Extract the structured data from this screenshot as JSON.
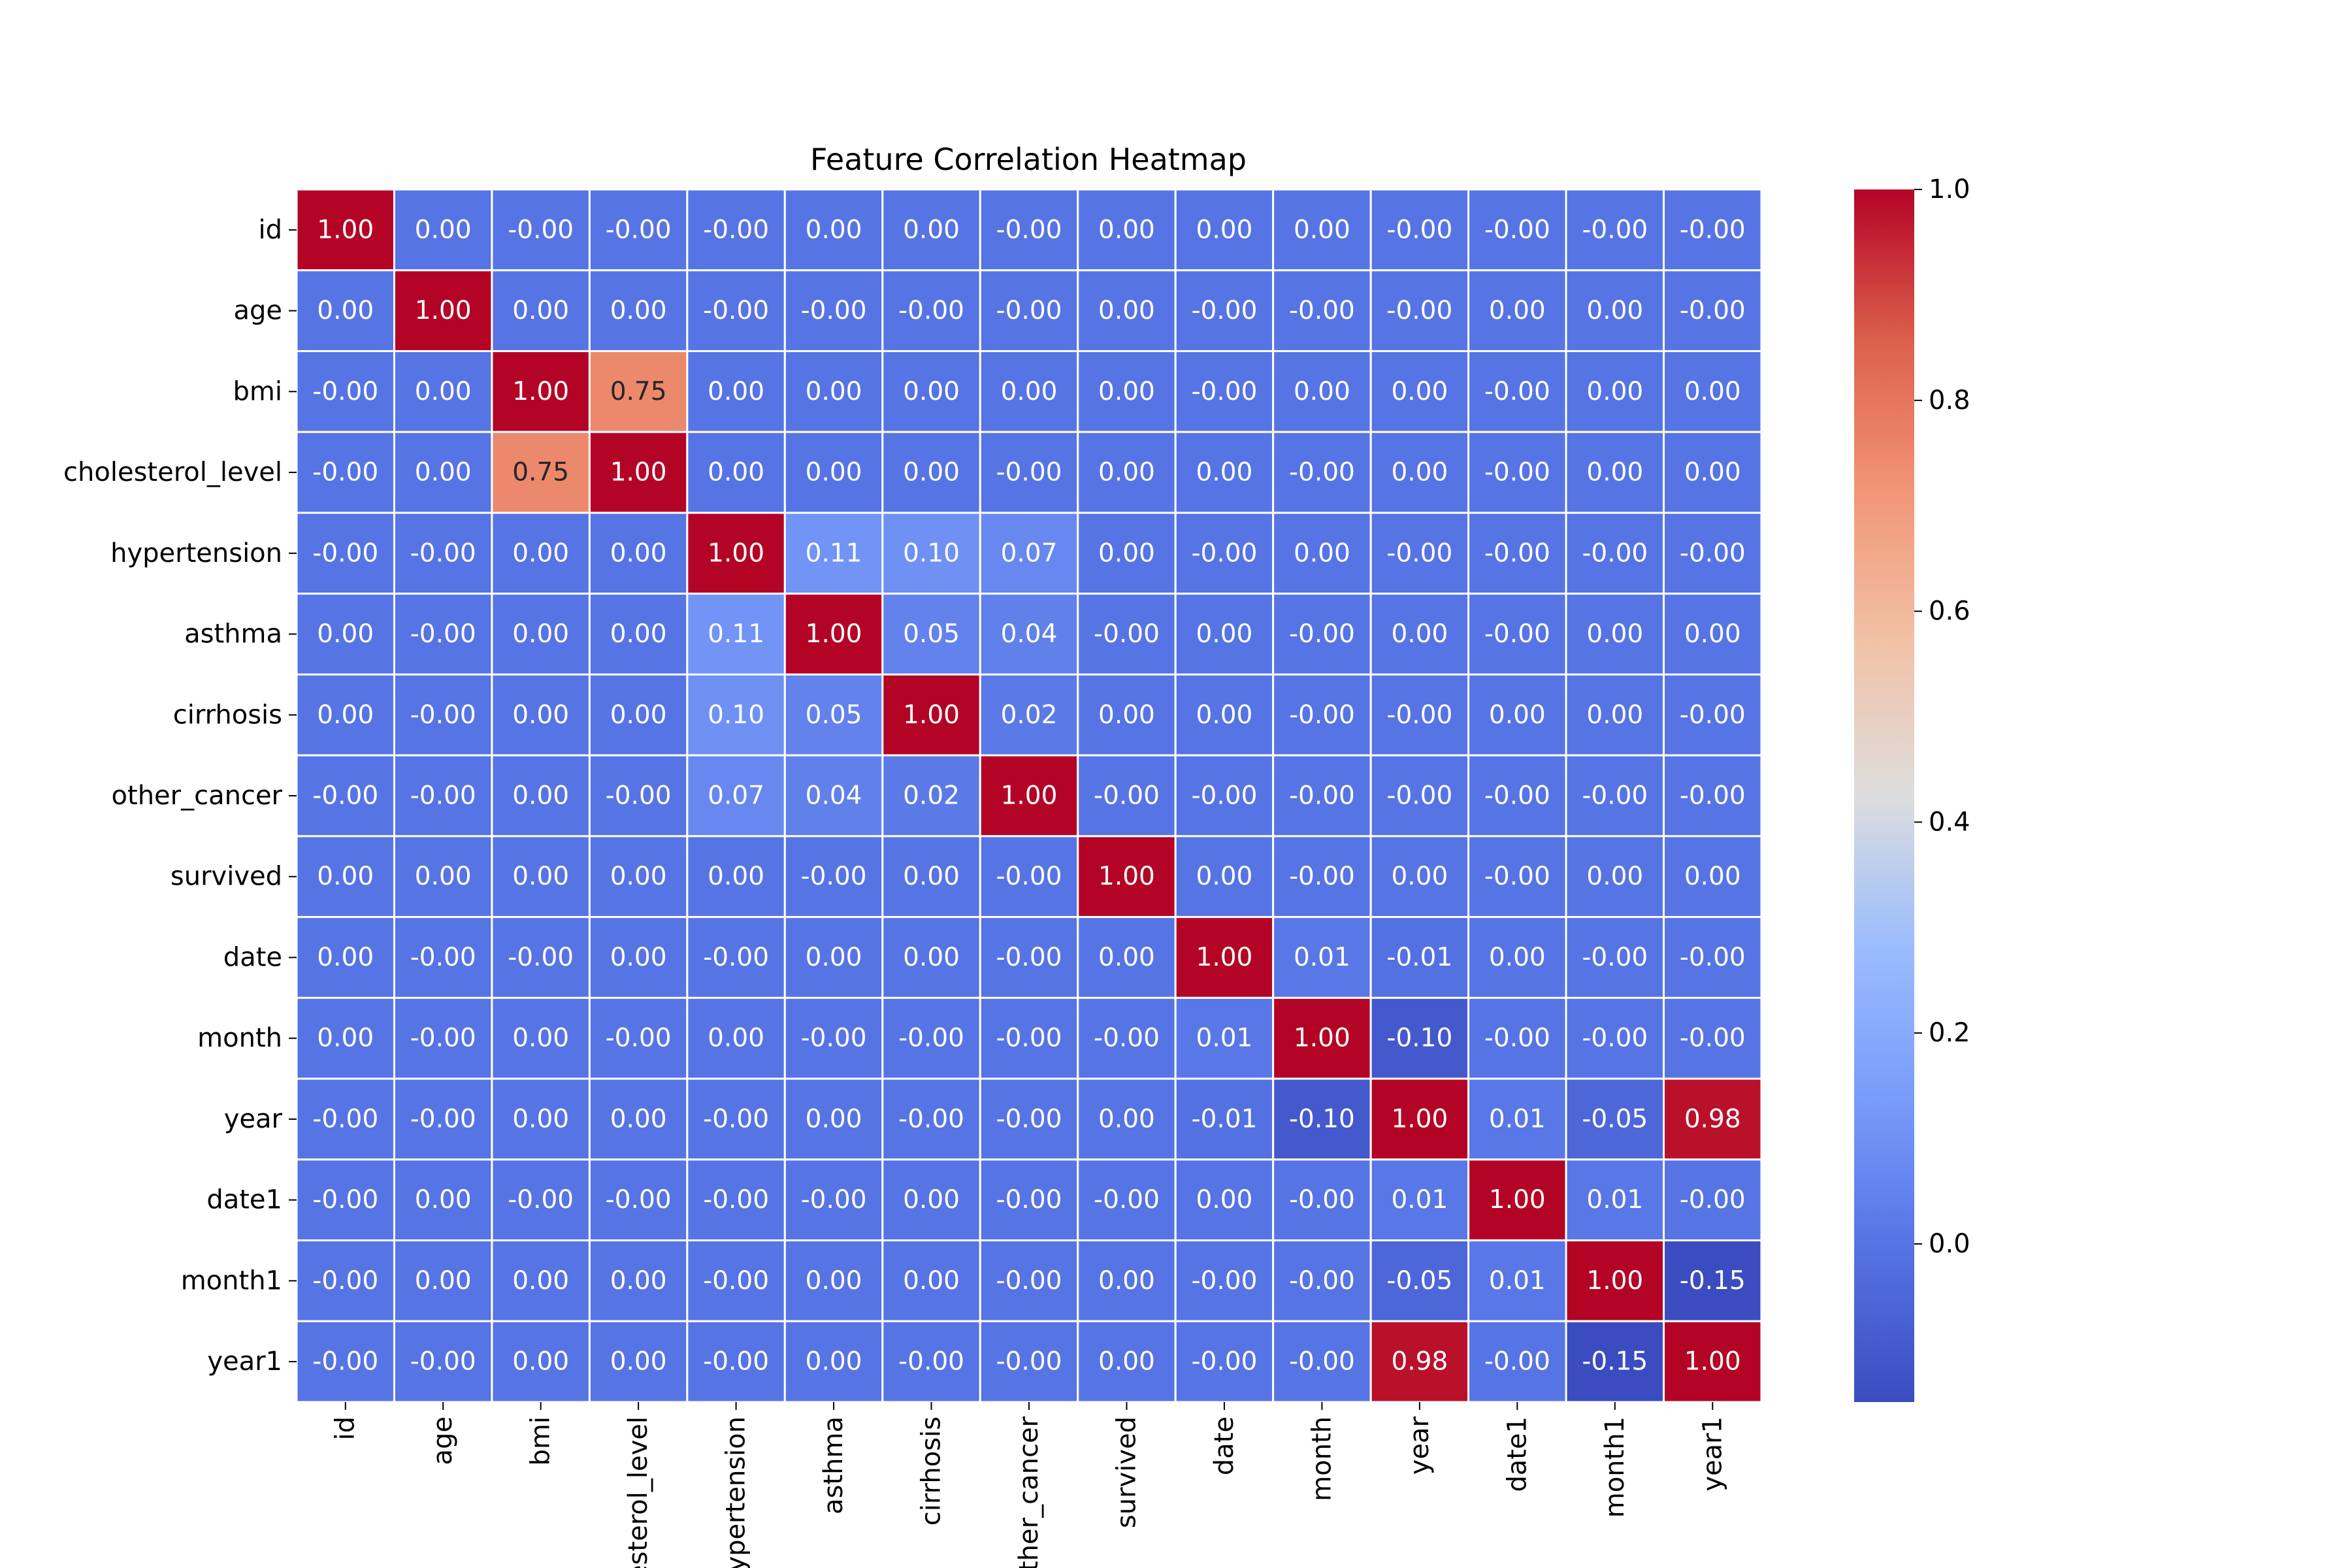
{
  "chart_data": {
    "type": "heatmap",
    "title": "Feature Correlation Heatmap",
    "xlabel": "",
    "ylabel": "",
    "colormap": "coolwarm",
    "value_range": [
      -0.15,
      1.0
    ],
    "rows": [
      "id",
      "age",
      "bmi",
      "cholesterol_level",
      "hypertension",
      "asthma",
      "cirrhosis",
      "other_cancer",
      "survived",
      "date",
      "month",
      "year",
      "date1",
      "month1",
      "year1"
    ],
    "columns": [
      "id",
      "age",
      "bmi",
      "cholesterol_level",
      "hypertension",
      "asthma",
      "cirrhosis",
      "other_cancer",
      "survived",
      "date",
      "month",
      "year",
      "date1",
      "month1",
      "year1"
    ],
    "values": [
      [
        1.0,
        0.0,
        -0.0,
        -0.0,
        -0.0,
        0.0,
        0.0,
        -0.0,
        0.0,
        0.0,
        0.0,
        -0.0,
        -0.0,
        -0.0,
        -0.0
      ],
      [
        0.0,
        1.0,
        0.0,
        0.0,
        -0.0,
        -0.0,
        -0.0,
        -0.0,
        0.0,
        -0.0,
        -0.0,
        -0.0,
        0.0,
        0.0,
        -0.0
      ],
      [
        -0.0,
        0.0,
        1.0,
        0.75,
        0.0,
        0.0,
        0.0,
        0.0,
        0.0,
        -0.0,
        0.0,
        0.0,
        -0.0,
        0.0,
        0.0
      ],
      [
        -0.0,
        0.0,
        0.75,
        1.0,
        0.0,
        0.0,
        0.0,
        -0.0,
        0.0,
        0.0,
        -0.0,
        0.0,
        -0.0,
        0.0,
        0.0
      ],
      [
        -0.0,
        -0.0,
        0.0,
        0.0,
        1.0,
        0.11,
        0.1,
        0.07,
        0.0,
        -0.0,
        0.0,
        -0.0,
        -0.0,
        -0.0,
        -0.0
      ],
      [
        0.0,
        -0.0,
        0.0,
        0.0,
        0.11,
        1.0,
        0.05,
        0.04,
        -0.0,
        0.0,
        -0.0,
        0.0,
        -0.0,
        0.0,
        0.0
      ],
      [
        0.0,
        -0.0,
        0.0,
        0.0,
        0.1,
        0.05,
        1.0,
        0.02,
        0.0,
        0.0,
        -0.0,
        -0.0,
        0.0,
        0.0,
        -0.0
      ],
      [
        -0.0,
        -0.0,
        0.0,
        -0.0,
        0.07,
        0.04,
        0.02,
        1.0,
        -0.0,
        -0.0,
        -0.0,
        -0.0,
        -0.0,
        -0.0,
        -0.0
      ],
      [
        0.0,
        0.0,
        0.0,
        0.0,
        0.0,
        -0.0,
        0.0,
        -0.0,
        1.0,
        0.0,
        -0.0,
        0.0,
        -0.0,
        0.0,
        0.0
      ],
      [
        0.0,
        -0.0,
        -0.0,
        0.0,
        -0.0,
        0.0,
        0.0,
        -0.0,
        0.0,
        1.0,
        0.01,
        -0.01,
        0.0,
        -0.0,
        -0.0
      ],
      [
        0.0,
        -0.0,
        0.0,
        -0.0,
        0.0,
        -0.0,
        -0.0,
        -0.0,
        -0.0,
        0.01,
        1.0,
        -0.1,
        -0.0,
        -0.0,
        -0.0
      ],
      [
        -0.0,
        -0.0,
        0.0,
        0.0,
        -0.0,
        0.0,
        -0.0,
        -0.0,
        0.0,
        -0.01,
        -0.1,
        1.0,
        0.01,
        -0.05,
        0.98
      ],
      [
        -0.0,
        0.0,
        -0.0,
        -0.0,
        -0.0,
        -0.0,
        0.0,
        -0.0,
        -0.0,
        0.0,
        -0.0,
        0.01,
        1.0,
        0.01,
        -0.0
      ],
      [
        -0.0,
        0.0,
        0.0,
        0.0,
        -0.0,
        0.0,
        0.0,
        -0.0,
        0.0,
        -0.0,
        -0.0,
        -0.05,
        0.01,
        1.0,
        -0.15
      ],
      [
        -0.0,
        -0.0,
        0.0,
        0.0,
        -0.0,
        0.0,
        -0.0,
        -0.0,
        0.0,
        -0.0,
        -0.0,
        0.98,
        -0.0,
        -0.15,
        1.0
      ]
    ],
    "cell_labels": [
      [
        "1.00",
        "0.00",
        "-0.00",
        "-0.00",
        "-0.00",
        "0.00",
        "0.00",
        "-0.00",
        "0.00",
        "0.00",
        "0.00",
        "-0.00",
        "-0.00",
        "-0.00",
        "-0.00"
      ],
      [
        "0.00",
        "1.00",
        "0.00",
        "0.00",
        "-0.00",
        "-0.00",
        "-0.00",
        "-0.00",
        "0.00",
        "-0.00",
        "-0.00",
        "-0.00",
        "0.00",
        "0.00",
        "-0.00"
      ],
      [
        "-0.00",
        "0.00",
        "1.00",
        "0.75",
        "0.00",
        "0.00",
        "0.00",
        "0.00",
        "0.00",
        "-0.00",
        "0.00",
        "0.00",
        "-0.00",
        "0.00",
        "0.00"
      ],
      [
        "-0.00",
        "0.00",
        "0.75",
        "1.00",
        "0.00",
        "0.00",
        "0.00",
        "-0.00",
        "0.00",
        "0.00",
        "-0.00",
        "0.00",
        "-0.00",
        "0.00",
        "0.00"
      ],
      [
        "-0.00",
        "-0.00",
        "0.00",
        "0.00",
        "1.00",
        "0.11",
        "0.10",
        "0.07",
        "0.00",
        "-0.00",
        "0.00",
        "-0.00",
        "-0.00",
        "-0.00",
        "-0.00"
      ],
      [
        "0.00",
        "-0.00",
        "0.00",
        "0.00",
        "0.11",
        "1.00",
        "0.05",
        "0.04",
        "-0.00",
        "0.00",
        "-0.00",
        "0.00",
        "-0.00",
        "0.00",
        "0.00"
      ],
      [
        "0.00",
        "-0.00",
        "0.00",
        "0.00",
        "0.10",
        "0.05",
        "1.00",
        "0.02",
        "0.00",
        "0.00",
        "-0.00",
        "-0.00",
        "0.00",
        "0.00",
        "-0.00"
      ],
      [
        "-0.00",
        "-0.00",
        "0.00",
        "-0.00",
        "0.07",
        "0.04",
        "0.02",
        "1.00",
        "-0.00",
        "-0.00",
        "-0.00",
        "-0.00",
        "-0.00",
        "-0.00",
        "-0.00"
      ],
      [
        "0.00",
        "0.00",
        "0.00",
        "0.00",
        "0.00",
        "-0.00",
        "0.00",
        "-0.00",
        "1.00",
        "0.00",
        "-0.00",
        "0.00",
        "-0.00",
        "0.00",
        "0.00"
      ],
      [
        "0.00",
        "-0.00",
        "-0.00",
        "0.00",
        "-0.00",
        "0.00",
        "0.00",
        "-0.00",
        "0.00",
        "1.00",
        "0.01",
        "-0.01",
        "0.00",
        "-0.00",
        "-0.00"
      ],
      [
        "0.00",
        "-0.00",
        "0.00",
        "-0.00",
        "0.00",
        "-0.00",
        "-0.00",
        "-0.00",
        "-0.00",
        "0.01",
        "1.00",
        "-0.10",
        "-0.00",
        "-0.00",
        "-0.00"
      ],
      [
        "-0.00",
        "-0.00",
        "0.00",
        "0.00",
        "-0.00",
        "0.00",
        "-0.00",
        "-0.00",
        "0.00",
        "-0.01",
        "-0.10",
        "1.00",
        "0.01",
        "-0.05",
        "0.98"
      ],
      [
        "-0.00",
        "0.00",
        "-0.00",
        "-0.00",
        "-0.00",
        "-0.00",
        "0.00",
        "-0.00",
        "-0.00",
        "0.00",
        "-0.00",
        "0.01",
        "1.00",
        "0.01",
        "-0.00"
      ],
      [
        "-0.00",
        "0.00",
        "0.00",
        "0.00",
        "-0.00",
        "0.00",
        "0.00",
        "-0.00",
        "0.00",
        "-0.00",
        "-0.00",
        "-0.05",
        "0.01",
        "1.00",
        "-0.15"
      ],
      [
        "-0.00",
        "-0.00",
        "0.00",
        "0.00",
        "-0.00",
        "0.00",
        "-0.00",
        "-0.00",
        "0.00",
        "-0.00",
        "-0.00",
        "0.98",
        "-0.00",
        "-0.15",
        "1.00"
      ]
    ],
    "colorbar": {
      "ticks": [
        0.0,
        0.2,
        0.4,
        0.6,
        0.8,
        1.0
      ],
      "tick_labels": [
        "0.0",
        "0.2",
        "0.4",
        "0.6",
        "0.8",
        "1.0"
      ]
    },
    "grid": false,
    "legend": "colorbar-right"
  }
}
